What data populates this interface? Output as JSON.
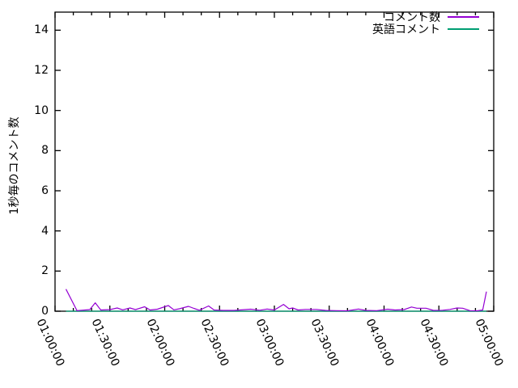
{
  "chart_data": {
    "type": "line",
    "title": "",
    "xlabel": "",
    "ylabel": "1秒毎のコメント数",
    "xlim_minutes": [
      60,
      300
    ],
    "ylim": [
      0,
      14.9
    ],
    "yticks": [
      0,
      2,
      4,
      6,
      8,
      10,
      12,
      14
    ],
    "xticks": [
      {
        "minutes": 60,
        "label": "01:00:00"
      },
      {
        "minutes": 90,
        "label": "01:30:00"
      },
      {
        "minutes": 120,
        "label": "02:00:00"
      },
      {
        "minutes": 150,
        "label": "02:30:00"
      },
      {
        "minutes": 180,
        "label": "03:00:00"
      },
      {
        "minutes": 210,
        "label": "03:30:00"
      },
      {
        "minutes": 240,
        "label": "04:00:00"
      },
      {
        "minutes": 270,
        "label": "04:30:00"
      },
      {
        "minutes": 300,
        "label": "05:00:00"
      }
    ],
    "x_minor_tick_interval_minutes": 10,
    "grid": false,
    "legend_position": "top-right-inside",
    "axis_color": "#000000",
    "series": [
      {
        "name": "英語コメント",
        "color": "#009e73",
        "points": [
          [
            66,
            0
          ],
          [
            296,
            0
          ]
        ]
      },
      {
        "name": "コメント数",
        "color": "#9400d3",
        "points": [
          [
            66,
            1.1
          ],
          [
            72,
            0.03
          ],
          [
            79,
            0.08
          ],
          [
            82,
            0.42
          ],
          [
            85,
            0.06
          ],
          [
            90,
            0.08
          ],
          [
            94,
            0.16
          ],
          [
            97,
            0.07
          ],
          [
            101,
            0.16
          ],
          [
            104,
            0.08
          ],
          [
            109,
            0.22
          ],
          [
            112,
            0.06
          ],
          [
            116,
            0.1
          ],
          [
            122,
            0.28
          ],
          [
            125,
            0.07
          ],
          [
            128,
            0.12
          ],
          [
            133,
            0.24
          ],
          [
            136,
            0.14
          ],
          [
            139,
            0.05
          ],
          [
            144,
            0.26
          ],
          [
            147,
            0.06
          ],
          [
            152,
            0.04
          ],
          [
            158,
            0.04
          ],
          [
            167,
            0.1
          ],
          [
            172,
            0.05
          ],
          [
            176,
            0.11
          ],
          [
            180,
            0.06
          ],
          [
            185,
            0.34
          ],
          [
            188,
            0.12
          ],
          [
            190,
            0.16
          ],
          [
            193,
            0.06
          ],
          [
            197,
            0.09
          ],
          [
            203,
            0.09
          ],
          [
            208,
            0.04
          ],
          [
            214,
            0.03
          ],
          [
            220,
            0.02
          ],
          [
            226,
            0.11
          ],
          [
            230,
            0.04
          ],
          [
            236,
            0.03
          ],
          [
            242,
            0.1
          ],
          [
            246,
            0.06
          ],
          [
            251,
            0.08
          ],
          [
            255,
            0.21
          ],
          [
            258,
            0.15
          ],
          [
            263,
            0.15
          ],
          [
            267,
            0.04
          ],
          [
            272,
            0.05
          ],
          [
            276,
            0.09
          ],
          [
            280,
            0.16
          ],
          [
            283,
            0.15
          ],
          [
            287,
            0.03
          ],
          [
            291,
            0.02
          ],
          [
            294,
            0.06
          ],
          [
            296,
            0.98
          ]
        ]
      }
    ],
    "legend_order": [
      "コメント数",
      "英語コメント"
    ]
  }
}
